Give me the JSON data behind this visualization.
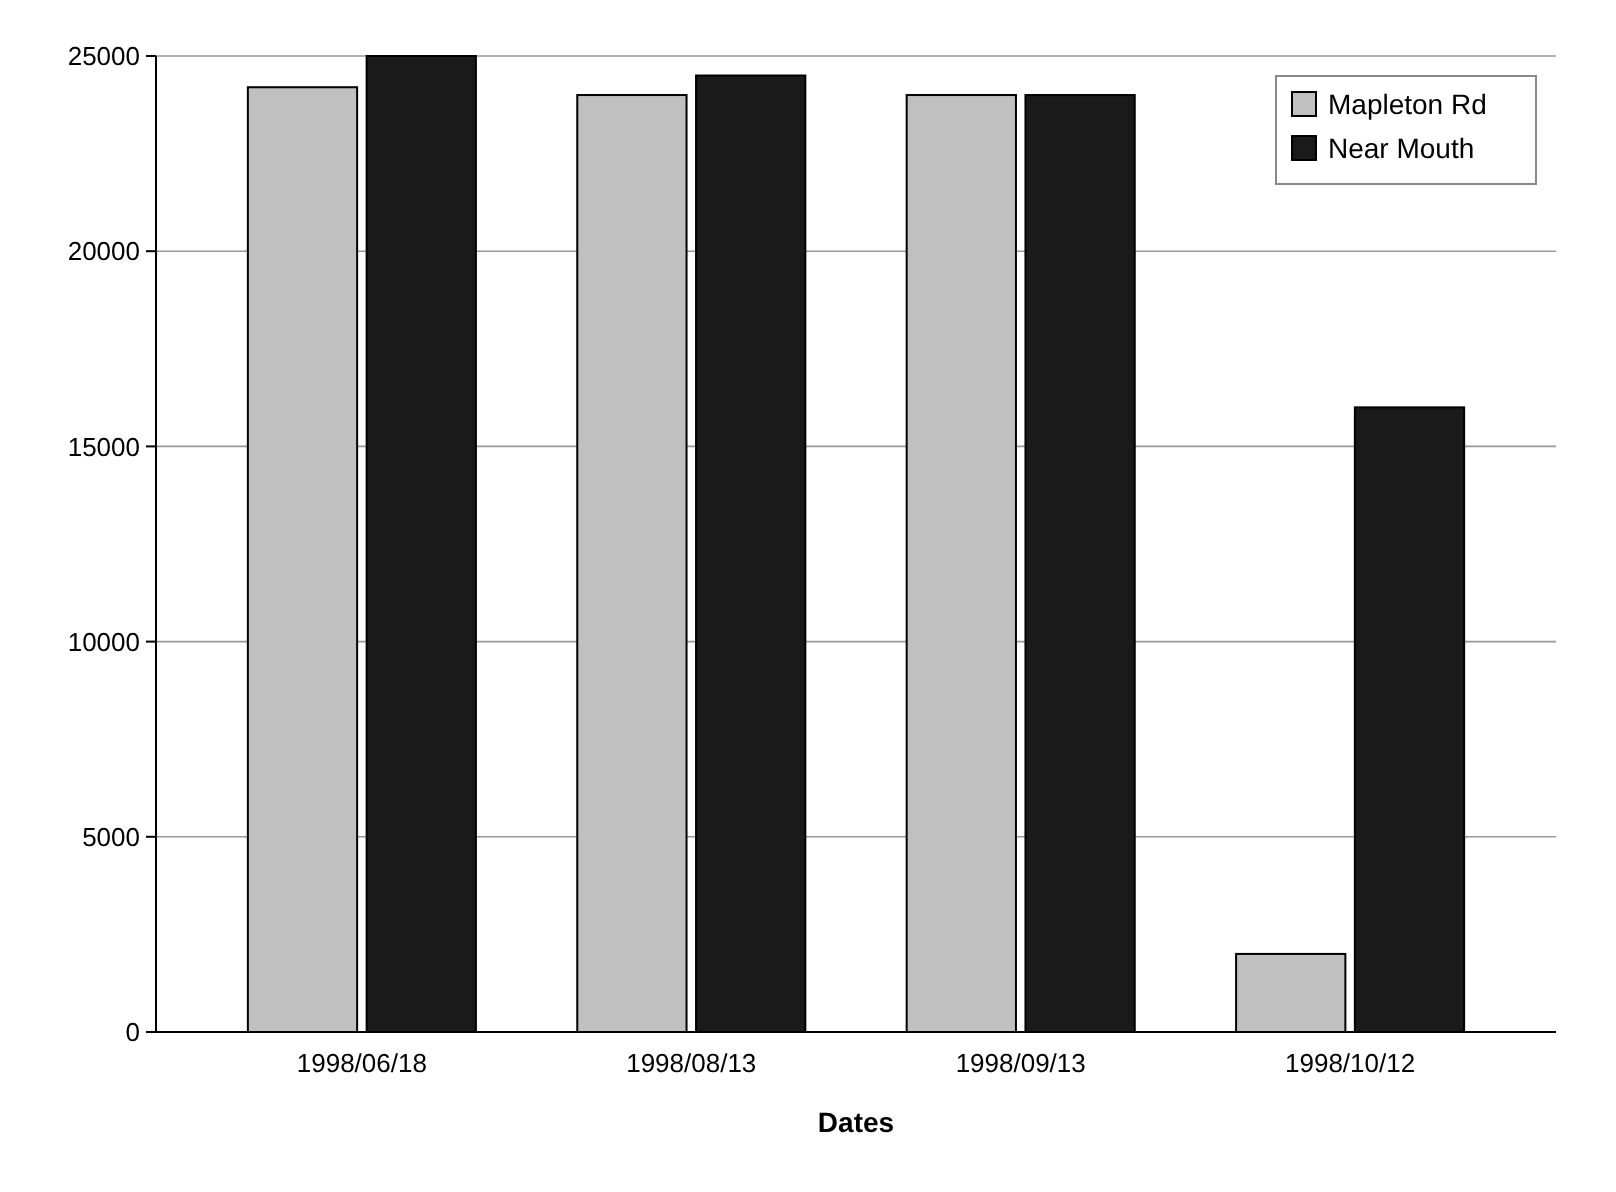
{
  "chart_data": {
    "type": "bar",
    "xlabel": "Dates",
    "categories": [
      "1998/06/18",
      "1998/08/13",
      "1998/09/13",
      "1998/10/12"
    ],
    "series": [
      {
        "name": "Mapleton Rd",
        "color": "#c0c0c0",
        "values": [
          24200,
          24000,
          24000,
          2000
        ]
      },
      {
        "name": "Near Mouth",
        "color": "#1a1a1a",
        "values": [
          25000,
          24500,
          24000,
          16000
        ]
      }
    ],
    "ylim": [
      0,
      25000
    ],
    "yticks": [
      0,
      5000,
      10000,
      15000,
      20000,
      25000
    ],
    "grid": "y",
    "legend": "top right"
  }
}
